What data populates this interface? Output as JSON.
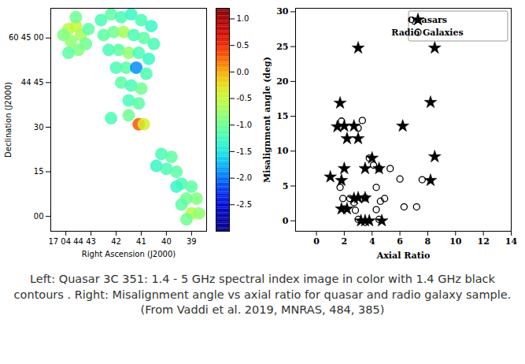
{
  "chart_data": [
    {
      "type": "heatmap",
      "x_label": "Right Ascension (J2000)",
      "y_label": "Declination (J2000)",
      "xlim": [
        44.6,
        38.4
      ],
      "xticks": [
        {
          "value": 44,
          "label": "17 04 44"
        },
        43,
        42,
        41,
        40,
        39
      ],
      "ylim": [
        -5,
        70
      ],
      "yticks": [
        {
          "value": 60,
          "label": "60 45 00"
        },
        {
          "value": 45,
          "label": "44 45"
        },
        30,
        15,
        {
          "value": 0,
          "label": "00"
        }
      ],
      "cells": [
        [
          43.9,
          63,
          -0.6
        ],
        [
          43.6,
          64,
          -0.5
        ],
        [
          43.4,
          61,
          -0.7
        ],
        [
          43.8,
          59,
          -0.8
        ],
        [
          44.1,
          61,
          -0.9
        ],
        [
          43.2,
          58,
          -1.0
        ],
        [
          43.5,
          56,
          -0.9
        ],
        [
          43.9,
          55,
          -1.1
        ],
        [
          43.1,
          63,
          -1.1
        ],
        [
          43.6,
          67,
          -1.0
        ],
        [
          42.6,
          66,
          -1.2
        ],
        [
          42.2,
          68,
          -1.1
        ],
        [
          41.8,
          67,
          -1.2
        ],
        [
          41.4,
          68,
          -1.3
        ],
        [
          41.0,
          66,
          -1.2
        ],
        [
          40.6,
          64,
          -1.3
        ],
        [
          42.5,
          61,
          -1.1
        ],
        [
          42.1,
          62,
          -1.0
        ],
        [
          41.7,
          62,
          -0.7
        ],
        [
          41.3,
          61,
          -1.2
        ],
        [
          40.9,
          60,
          -1.1
        ],
        [
          40.5,
          58,
          -1.2
        ],
        [
          42.3,
          56,
          -1.2
        ],
        [
          41.9,
          56,
          -1.1
        ],
        [
          41.5,
          55,
          -0.8
        ],
        [
          41.1,
          55,
          -1.2
        ],
        [
          40.7,
          53,
          -1.3
        ],
        [
          42.0,
          50,
          -1.2
        ],
        [
          41.6,
          50,
          -1.1
        ],
        [
          41.2,
          50,
          -1.9
        ],
        [
          40.8,
          48,
          -1.2
        ],
        [
          41.8,
          45,
          -1.1
        ],
        [
          41.4,
          44,
          -1.2
        ],
        [
          41.0,
          43,
          -1.0
        ],
        [
          41.5,
          39,
          -1.2
        ],
        [
          41.1,
          38,
          -1.1
        ],
        [
          41.5,
          34,
          -1.0
        ],
        [
          41.1,
          31,
          0.3
        ],
        [
          40.9,
          31,
          -0.4
        ],
        [
          42.2,
          33,
          -1.2
        ],
        [
          40.2,
          21,
          -1.2
        ],
        [
          39.8,
          20,
          -1.1
        ],
        [
          40.4,
          17,
          -1.3
        ],
        [
          40.0,
          16,
          -1.2
        ],
        [
          39.6,
          15,
          -1.1
        ],
        [
          39.4,
          11,
          -1.2
        ],
        [
          39.0,
          10,
          -1.1
        ],
        [
          39.6,
          10,
          -1.3
        ],
        [
          39.2,
          6,
          -1.0
        ],
        [
          38.8,
          6,
          -0.9
        ],
        [
          39.4,
          4,
          -1.1
        ],
        [
          39.0,
          1,
          -0.6
        ],
        [
          38.7,
          1,
          -0.8
        ],
        [
          39.2,
          -1,
          -1.0
        ]
      ],
      "colorbar_lim": [
        -3,
        1.2
      ],
      "colorbar_ticks": [
        {
          "value": 1,
          "label": "1.0"
        },
        0.5,
        {
          "value": 0,
          "label": "0.0"
        },
        -0.5,
        {
          "value": -1,
          "label": "-1.0"
        },
        -1.5,
        {
          "value": -2,
          "label": "-2.0"
        },
        -2.5
      ]
    },
    {
      "type": "scatter",
      "x_label": "Axial Ratio",
      "y_label": "Misalignment angle (deg)",
      "xlim": [
        -1.5,
        14
      ],
      "xticks": [
        0,
        2,
        4,
        6,
        8,
        10,
        12,
        14
      ],
      "ylim": [
        -1.5,
        30.5
      ],
      "yticks": [
        0,
        5,
        10,
        15,
        20,
        25,
        30
      ],
      "legend": "top-right",
      "series": [
        {
          "name": "Quasars",
          "marker": "star",
          "color": "#000000",
          "x": [
            1.0,
            1.7,
            1.5,
            2.0,
            2.2,
            2.7,
            3.0,
            2.0,
            1.8,
            1.8,
            2.2,
            2.7,
            3.0,
            3.5,
            3.0,
            3.2,
            3.5,
            3.8,
            4.7,
            4.0,
            3.5,
            4.5,
            6.2,
            8.2,
            8.5,
            8.5,
            8.2
          ],
          "values": [
            6.3,
            16.9,
            13.5,
            13.6,
            11.8,
            13.6,
            11.8,
            7.5,
            5.8,
            1.7,
            1.7,
            3.2,
            3.3,
            3.3,
            24.8,
            0,
            0,
            0,
            0,
            9.0,
            7.5,
            7.5,
            13.6,
            17.0,
            24.8,
            9.2,
            5.8
          ]
        },
        {
          "name": "Radio Galaxies",
          "marker": "open_circle",
          "color": "#000000",
          "x": [
            1.8,
            1.7,
            1.9,
            2.0,
            2.4,
            2.7,
            2.8,
            3.3,
            3.0,
            3.5,
            3.8,
            4.1,
            4.5,
            4.3,
            4.6,
            4.9,
            4.3,
            4.5,
            5.3,
            6.0,
            6.3,
            7.2,
            7.6,
            3.0
          ],
          "values": [
            14.3,
            4.8,
            3.2,
            1.7,
            3.2,
            2.6,
            1.5,
            14.4,
            13.3,
            3.3,
            9.0,
            8.0,
            7.5,
            4.8,
            2.8,
            3.2,
            1.6,
            0.2,
            7.5,
            6.0,
            2.0,
            2.0,
            5.9,
            0.2
          ]
        }
      ]
    }
  ],
  "caption": [
    "Left: Quasar 3C 351: 1.4 - 5 GHz spectral index image in color with 1.4 GHz black contours . Right: Misalignment angle vs axial ratio for quasar and radio galaxy sample.",
    "(From Vaddi et al. 2019, MNRAS, 484, 385)"
  ]
}
